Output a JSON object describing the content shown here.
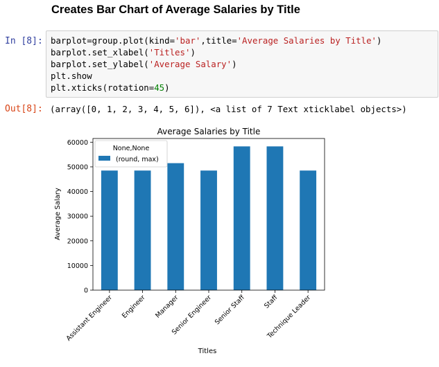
{
  "notebook": {
    "heading": "Creates Bar Chart of Average Salaries by Title",
    "input_prompt": "In [8]:",
    "output_prompt": "Out[8]:",
    "output_text": "(array([0, 1, 2, 3, 4, 5, 6]), <a list of 7 Text xticklabel objects>)",
    "code": {
      "line1": {
        "a": "barplot=group.plot(kind=",
        "b": "'bar'",
        "c": ",title=",
        "d": "'Average Salaries by Title'",
        "e": ")"
      },
      "line2": {
        "a": "barplot.set_xlabel(",
        "b": "'Titles'",
        "c": ")"
      },
      "line3": {
        "a": "barplot.set_ylabel(",
        "b": "'Average Salary'",
        "c": ")"
      },
      "line4": {
        "a": "plt.show"
      },
      "line5": {
        "a": "plt.xticks(rotation=",
        "b": "45",
        "c": ")"
      }
    }
  },
  "chart_data": {
    "type": "bar",
    "title": "Average Salaries by Title",
    "xlabel": "Titles",
    "ylabel": "Average Salary",
    "categories": [
      "Assistant Engineer",
      "Engineer",
      "Manager",
      "Senior Engineer",
      "Senior Staff",
      "Staff",
      "Technique Leader"
    ],
    "series": [
      {
        "name": "(round, max)",
        "values": [
          48500,
          48500,
          51500,
          48500,
          58300,
          58300,
          48500
        ],
        "color": "#1f77b4"
      }
    ],
    "legend_title": "None,None",
    "legend_position": "upper-left",
    "ylim": [
      0,
      61500
    ],
    "yticks": [
      0,
      10000,
      20000,
      30000,
      40000,
      50000,
      60000
    ],
    "ytick_labels": [
      "0",
      "10000",
      "20000",
      "30000",
      "40000",
      "50000",
      "60000"
    ],
    "grid": false
  }
}
